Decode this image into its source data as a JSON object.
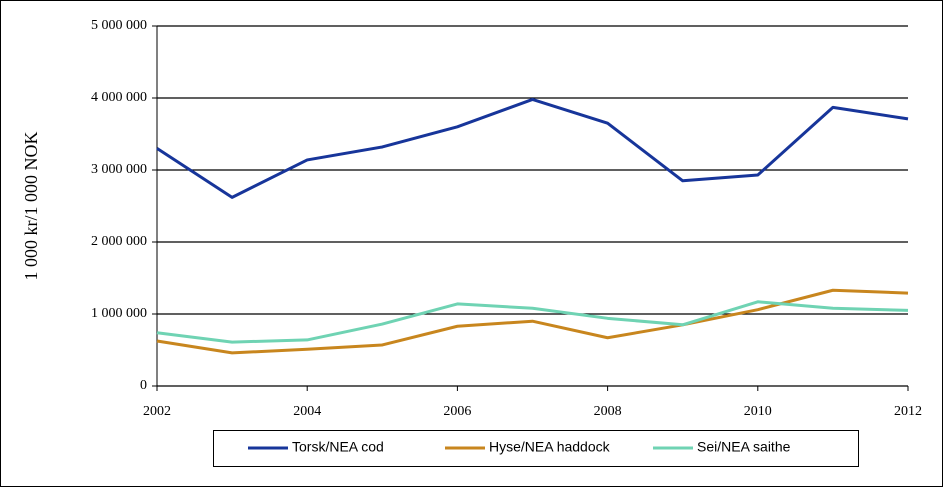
{
  "chart_data": {
    "type": "line",
    "y_label": "1 000 kr/1 000 NOK",
    "x": [
      2002,
      2003,
      2004,
      2005,
      2006,
      2007,
      2008,
      2009,
      2010,
      2011,
      2012
    ],
    "xlim": [
      2002,
      2012
    ],
    "xticks": [
      2002,
      2004,
      2006,
      2008,
      2010,
      2012
    ],
    "ylim": [
      0,
      5000000
    ],
    "yticks": [
      0,
      {
        "value": 1000000,
        "label": "1 000 000"
      },
      {
        "value": 2000000,
        "label": "2 000 000"
      },
      {
        "value": 3000000,
        "label": "3 000 000"
      },
      {
        "value": 4000000,
        "label": "4 000 000"
      },
      {
        "value": 5000000,
        "label": "5 000 000"
      }
    ],
    "grid": true,
    "legend": "bottom",
    "series": [
      {
        "name": "Torsk/NEA cod",
        "color": "#17359a",
        "values": [
          3300000,
          2620000,
          3140000,
          3320000,
          3600000,
          3980000,
          3650000,
          2850000,
          2930000,
          3870000,
          3710000
        ]
      },
      {
        "name": "Hyse/NEA haddock",
        "color": "#c8861e",
        "values": [
          625000,
          460000,
          510000,
          570000,
          830000,
          900000,
          670000,
          850000,
          1060000,
          1330000,
          1290000
        ]
      },
      {
        "name": "Sei/NEA saithe",
        "color": "#6fd3b3",
        "values": [
          740000,
          610000,
          640000,
          860000,
          1140000,
          1080000,
          940000,
          850000,
          1170000,
          1080000,
          1050000
        ]
      }
    ]
  }
}
